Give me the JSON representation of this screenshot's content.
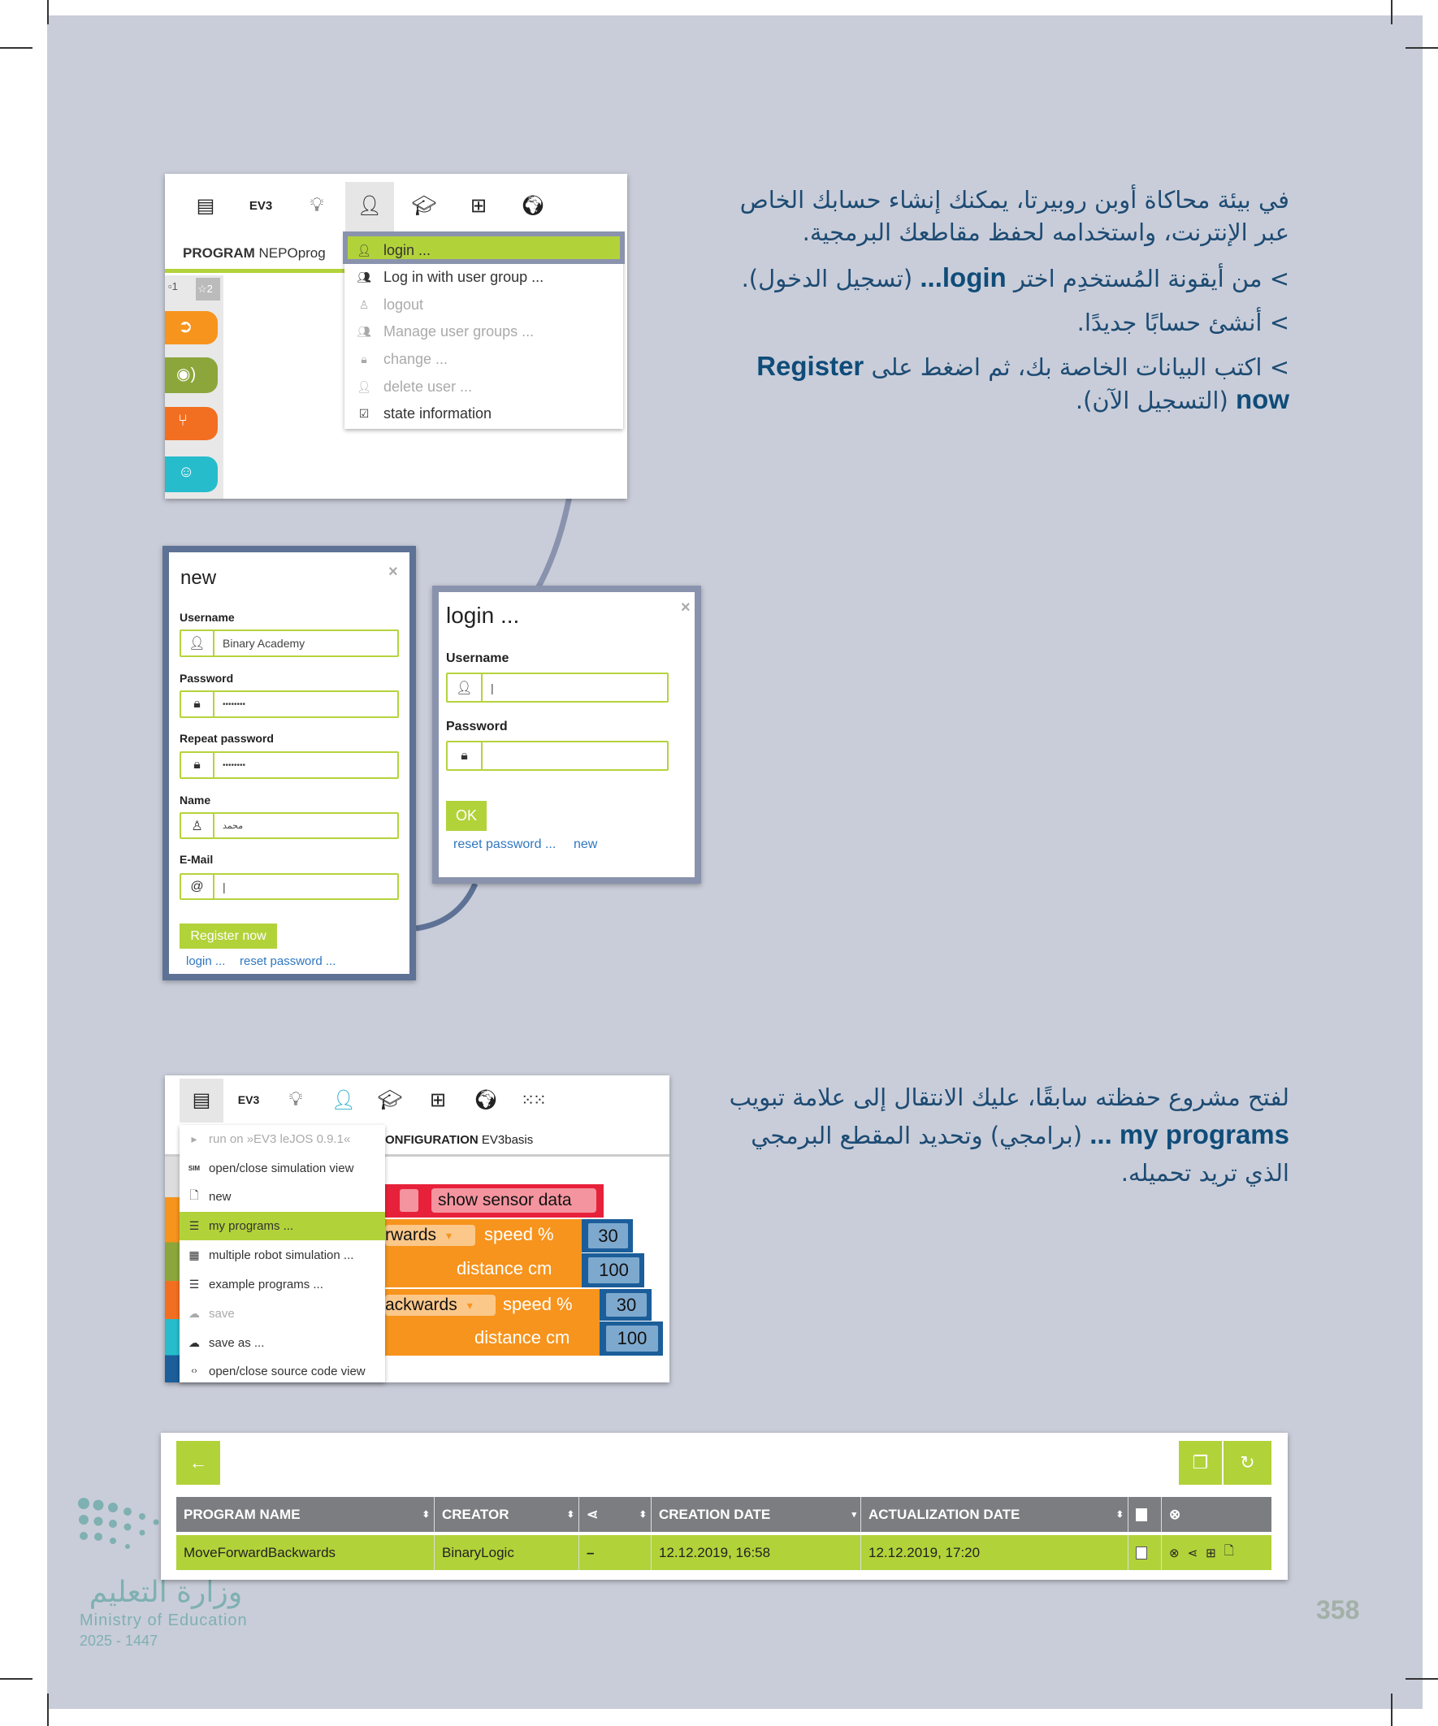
{
  "page_number": "358",
  "section1": {
    "paragraph": "في بيئة محاكاة أوبن روبيرتا، يمكنك إنشاء حسابك الخاص عبر الإنترنت، واستخدامه لحفظ مقاطعك البرمجية.",
    "step1_pre": "> من أيقونة المُستخدِم اختر ",
    "step1_bold": "login...",
    "step1_post": " (تسجيل الدخول).",
    "step2": "> أنشئ حسابًا جديدًا.",
    "step3_pre": "> اكتب البيانات الخاصة بك، ثم اضغط على ",
    "step3_bold": "Register now",
    "step3_post": " (التسجيل الآن)."
  },
  "section2": {
    "paragraph_pre": "لفتح مشروع حفظته سابقًا، عليك الانتقال إلى علامة تبويب ",
    "paragraph_bold": "my programs ...",
    "paragraph_post": " (برامجي) وتحديد المقطع البرمجي الذي تريد تحميله."
  },
  "screenshot1": {
    "toolbar": {
      "ev3": "EV3",
      "icons": [
        "program-icon",
        "ev3-label",
        "lightbulb-icon",
        "user-icon",
        "graduation-cap-icon",
        "gallery-icon",
        "globe-icon"
      ]
    },
    "program_label": "PROGRAM",
    "program_name": "NEPOprog",
    "tabs": [
      "1",
      "2"
    ],
    "user_menu": [
      {
        "label": "login ...",
        "icon": "user-icon",
        "state": "highlighted"
      },
      {
        "label": "Log in with user group ...",
        "icon": "user-group-icon",
        "state": "enabled"
      },
      {
        "label": "logout",
        "icon": "user-outline-icon",
        "state": "disabled"
      },
      {
        "label": "Manage user groups ...",
        "icon": "users-icon",
        "state": "disabled"
      },
      {
        "label": "change ...",
        "icon": "lock-icon",
        "state": "disabled"
      },
      {
        "label": "delete user ...",
        "icon": "user-minus-icon",
        "state": "disabled"
      },
      {
        "label": "state information",
        "icon": "checkbox-icon",
        "state": "enabled"
      }
    ]
  },
  "new_dialog": {
    "title": "new",
    "close": "×",
    "fields": [
      {
        "label": "Username",
        "value": "Binary Academy",
        "icon": "user-icon"
      },
      {
        "label": "Password",
        "value": "••••••••",
        "icon": "lock-icon"
      },
      {
        "label": "Repeat password",
        "value": "••••••••",
        "icon": "lock-icon"
      },
      {
        "label": "Name",
        "value": "محمد",
        "icon": "user-outline-icon"
      },
      {
        "label": "E-Mail",
        "value": "|",
        "icon": "at-icon"
      }
    ],
    "register_button": "Register now",
    "link_login": "login ...",
    "link_reset": "reset password ..."
  },
  "login_dialog": {
    "title": "login ...",
    "close": "×",
    "username_label": "Username",
    "username_value": "|",
    "password_label": "Password",
    "password_value": "",
    "ok_button": "OK",
    "link_reset": "reset password ...",
    "link_new": "new"
  },
  "screenshot2": {
    "toolbar": {
      "ev3": "EV3"
    },
    "config_label": "ONFIGURATION",
    "config_name": "EV3basis",
    "edit_menu": [
      {
        "label": "run on »EV3 leJOS 0.9.1«",
        "icon": "play-icon",
        "state": "disabled"
      },
      {
        "label": "open/close simulation view",
        "icon": "sim-icon",
        "state": "enabled"
      },
      {
        "label": "new",
        "icon": "new-file-icon",
        "state": "enabled"
      },
      {
        "label": "my programs ...",
        "icon": "list-icon",
        "state": "highlighted"
      },
      {
        "label": "multiple robot simulation ...",
        "icon": "grid-icon",
        "state": "enabled"
      },
      {
        "label": "example programs ...",
        "icon": "list-icon",
        "state": "enabled"
      },
      {
        "label": "save",
        "icon": "cloud-upload-icon",
        "state": "disabled"
      },
      {
        "label": "save as ...",
        "icon": "cloud-upload-icon",
        "state": "enabled"
      },
      {
        "label": "open/close source code view",
        "icon": "code-icon",
        "state": "enabled"
      }
    ],
    "blocks": {
      "sensor": "show sensor data",
      "forward": "rwards",
      "backward": "ackwards",
      "speed": "speed %",
      "distance": "distance cm",
      "values": [
        "30",
        "100",
        "30",
        "100"
      ],
      "dropdown_arrow": "▾"
    }
  },
  "programs_table": {
    "columns": [
      "PROGRAM NAME",
      "CREATOR",
      "",
      "CREATION DATE",
      "ACTUALIZATION DATE",
      "",
      ""
    ],
    "rows": [
      {
        "name": "MoveForwardBackwards",
        "creator": "BinaryLogic",
        "shared": "–",
        "created": "12.12.2019, 16:58",
        "updated": "12.12.2019, 17:20"
      }
    ]
  },
  "logo": {
    "arabic": "وزارة التعليم",
    "english": "Ministry of Education",
    "years": "2025 - 1447"
  },
  "colors": {
    "accent_green": "#b2d23a",
    "page_bg": "#c9cdd9",
    "text_blue": "#1d4b73",
    "connector": "#8a93ad",
    "dialog_border": "#5d7295",
    "table_header": "#7b7d80"
  }
}
